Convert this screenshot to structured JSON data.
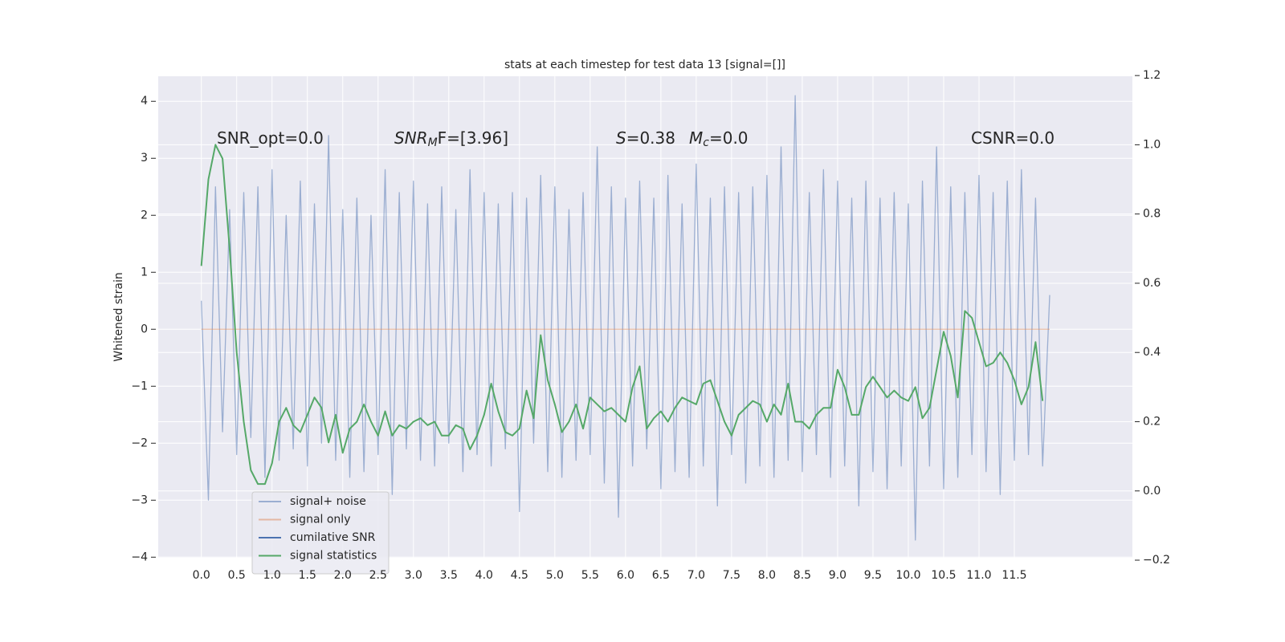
{
  "chart_data": {
    "type": "line",
    "title": "stats at each timestep for test data 13 [signal=[]]",
    "y_label": "Whitened strain",
    "annotations": [
      {
        "text": "SNR_opt=0.0"
      },
      {
        "base": "SNR",
        "sub": "M",
        "rest": "F=[3.96]"
      },
      {
        "base": "S",
        "rest": "=0.38"
      },
      {
        "base": "M",
        "sub": "c",
        "rest": "=0.0"
      },
      {
        "text": "CSNR=0.0"
      }
    ],
    "xlim": [
      -0.61,
      13.17
    ],
    "ylim": [
      -4.01,
      4.44
    ],
    "y2lim": [
      -0.193,
      1.198
    ],
    "xticks": [
      {
        "value": 0,
        "label": "0.0"
      },
      0.5,
      {
        "value": 1,
        "label": "1.0"
      },
      1.5,
      {
        "value": 2,
        "label": "2.0"
      },
      2.5,
      {
        "value": 3,
        "label": "3.0"
      },
      3.5,
      {
        "value": 4,
        "label": "4.0"
      },
      4.5,
      {
        "value": 5,
        "label": "5.0"
      },
      5.5,
      {
        "value": 6,
        "label": "6.0"
      },
      6.5,
      {
        "value": 7,
        "label": "7.0"
      },
      7.5,
      {
        "value": 8,
        "label": "8.0"
      },
      8.5,
      {
        "value": 9,
        "label": "9.0"
      },
      9.5,
      {
        "value": 10,
        "label": "10.0"
      },
      10.5,
      {
        "value": 11,
        "label": "11.0"
      },
      11.5
    ],
    "yticks": [
      {
        "value": -4,
        "label": "−4"
      },
      {
        "value": -3,
        "label": "−3"
      },
      {
        "value": -2,
        "label": "−2"
      },
      {
        "value": -1,
        "label": "−1"
      },
      0,
      1,
      2,
      3,
      4
    ],
    "y2ticks": [
      {
        "value": -0.2,
        "label": "−0.2"
      },
      {
        "value": 0,
        "label": "0.0"
      },
      0.2,
      0.4,
      0.6,
      0.8,
      {
        "value": 1,
        "label": "1.0"
      },
      1.2
    ],
    "grid": true,
    "legend": "lower left",
    "series": [
      {
        "name": "signal+ noise",
        "color": "#4c72b0",
        "alpha": 0.5,
        "x": [
          0.0,
          0.1,
          0.2,
          0.3,
          0.4,
          0.5,
          0.6,
          0.7,
          0.8,
          0.9,
          1.0,
          1.1,
          1.2,
          1.3,
          1.4,
          1.5,
          1.6,
          1.7,
          1.8,
          1.9,
          2.0,
          2.1,
          2.2,
          2.3,
          2.4,
          2.5,
          2.6,
          2.7,
          2.8,
          2.9,
          3.0,
          3.1,
          3.2,
          3.3,
          3.4,
          3.5,
          3.6,
          3.7,
          3.8,
          3.9,
          4.0,
          4.1,
          4.2,
          4.3,
          4.4,
          4.5,
          4.6,
          4.7,
          4.8,
          4.9,
          5.0,
          5.1,
          5.2,
          5.3,
          5.4,
          5.5,
          5.6,
          5.7,
          5.8,
          5.9,
          6.0,
          6.1,
          6.2,
          6.3,
          6.4,
          6.5,
          6.6,
          6.7,
          6.8,
          6.9,
          7.0,
          7.1,
          7.2,
          7.3,
          7.4,
          7.5,
          7.6,
          7.7,
          7.8,
          7.9,
          8.0,
          8.1,
          8.2,
          8.3,
          8.4,
          8.5,
          8.6,
          8.7,
          8.8,
          8.9,
          9.0,
          9.1,
          9.2,
          9.3,
          9.4,
          9.5,
          9.6,
          9.7,
          9.8,
          9.9,
          10.0,
          10.1,
          10.2,
          10.3,
          10.4,
          10.5,
          10.6,
          10.7,
          10.8,
          10.9,
          11.0,
          11.1,
          11.2,
          11.3,
          11.4,
          11.5,
          11.6,
          11.7,
          11.8,
          11.9,
          12.0
        ],
        "values": [
          0.5,
          -3.0,
          2.5,
          -1.8,
          2.1,
          -2.2,
          2.4,
          -1.9,
          2.5,
          -2.6,
          2.8,
          -2.3,
          2.0,
          -2.1,
          2.6,
          -2.4,
          2.2,
          -2.0,
          3.4,
          -2.3,
          2.1,
          -2.6,
          2.3,
          -2.5,
          2.0,
          -2.2,
          2.8,
          -2.9,
          2.4,
          -2.1,
          2.6,
          -2.3,
          2.2,
          -2.4,
          2.5,
          -2.0,
          2.1,
          -2.5,
          2.8,
          -2.2,
          2.4,
          -2.4,
          2.2,
          -2.1,
          2.4,
          -3.2,
          2.3,
          -2.0,
          2.7,
          -2.5,
          2.5,
          -2.6,
          2.1,
          -2.3,
          2.4,
          -2.2,
          3.2,
          -2.7,
          2.5,
          -3.3,
          2.3,
          -2.4,
          2.6,
          -2.1,
          2.3,
          -2.8,
          2.7,
          -2.5,
          2.2,
          -2.6,
          2.9,
          -2.4,
          2.3,
          -3.1,
          2.5,
          -2.2,
          2.4,
          -2.7,
          2.5,
          -2.4,
          2.7,
          -2.6,
          3.2,
          -2.3,
          4.1,
          -2.5,
          2.4,
          -2.2,
          2.8,
          -2.6,
          2.6,
          -2.4,
          2.3,
          -3.1,
          2.6,
          -2.5,
          2.3,
          -2.8,
          2.4,
          -2.4,
          2.2,
          -3.7,
          2.6,
          -2.4,
          3.2,
          -2.8,
          2.5,
          -2.6,
          2.4,
          -2.2,
          2.7,
          -2.5,
          2.4,
          -2.9,
          2.6,
          -2.3,
          2.8,
          -2.2,
          2.3,
          -2.4,
          0.6
        ]
      },
      {
        "name": "signal only",
        "color": "#dd8452",
        "alpha": 0.5,
        "x": [
          0.0,
          12.0
        ],
        "values": [
          0,
          0
        ]
      },
      {
        "name": "cumilative SNR",
        "color": "#4c72b0",
        "alpha": 1,
        "x": [],
        "values": []
      },
      {
        "name": "signal statistics",
        "color": "#55a868",
        "alpha": 1,
        "axis": "y2",
        "x": [
          0.0,
          0.1,
          0.2,
          0.3,
          0.4,
          0.5,
          0.6,
          0.7,
          0.8,
          0.9,
          1.0,
          1.1,
          1.2,
          1.3,
          1.4,
          1.5,
          1.6,
          1.7,
          1.8,
          1.9,
          2.0,
          2.1,
          2.2,
          2.3,
          2.4,
          2.5,
          2.6,
          2.7,
          2.8,
          2.9,
          3.0,
          3.1,
          3.2,
          3.3,
          3.4,
          3.5,
          3.6,
          3.7,
          3.8,
          3.9,
          4.0,
          4.1,
          4.2,
          4.3,
          4.4,
          4.5,
          4.6,
          4.7,
          4.8,
          4.9,
          5.0,
          5.1,
          5.2,
          5.3,
          5.4,
          5.5,
          5.6,
          5.7,
          5.8,
          5.9,
          6.0,
          6.1,
          6.2,
          6.3,
          6.4,
          6.5,
          6.6,
          6.7,
          6.8,
          6.9,
          7.0,
          7.1,
          7.2,
          7.3,
          7.4,
          7.5,
          7.6,
          7.7,
          7.8,
          7.9,
          8.0,
          8.1,
          8.2,
          8.3,
          8.4,
          8.5,
          8.6,
          8.7,
          8.8,
          8.9,
          9.0,
          9.1,
          9.2,
          9.3,
          9.4,
          9.5,
          9.6,
          9.7,
          9.8,
          9.9,
          10.0,
          10.1,
          10.2,
          10.3,
          10.4,
          10.5,
          10.6,
          10.7,
          10.8,
          10.9,
          11.0,
          11.1,
          11.2,
          11.3,
          11.4,
          11.5,
          11.6,
          11.7,
          11.8,
          11.9
        ],
        "values": [
          0.65,
          0.9,
          1.0,
          0.96,
          0.7,
          0.4,
          0.2,
          0.06,
          0.02,
          0.02,
          0.08,
          0.2,
          0.24,
          0.19,
          0.17,
          0.22,
          0.27,
          0.24,
          0.14,
          0.22,
          0.11,
          0.18,
          0.2,
          0.25,
          0.2,
          0.16,
          0.23,
          0.16,
          0.19,
          0.18,
          0.2,
          0.21,
          0.19,
          0.2,
          0.16,
          0.16,
          0.19,
          0.18,
          0.12,
          0.16,
          0.22,
          0.31,
          0.23,
          0.17,
          0.16,
          0.18,
          0.29,
          0.21,
          0.45,
          0.32,
          0.25,
          0.17,
          0.2,
          0.25,
          0.18,
          0.27,
          0.25,
          0.23,
          0.24,
          0.22,
          0.2,
          0.3,
          0.36,
          0.18,
          0.21,
          0.23,
          0.2,
          0.24,
          0.27,
          0.26,
          0.25,
          0.31,
          0.32,
          0.26,
          0.2,
          0.16,
          0.22,
          0.24,
          0.26,
          0.25,
          0.2,
          0.25,
          0.22,
          0.31,
          0.2,
          0.2,
          0.18,
          0.22,
          0.24,
          0.24,
          0.35,
          0.3,
          0.22,
          0.22,
          0.3,
          0.33,
          0.3,
          0.27,
          0.29,
          0.27,
          0.26,
          0.3,
          0.21,
          0.24,
          0.35,
          0.46,
          0.39,
          0.27,
          0.52,
          0.5,
          0.43,
          0.36,
          0.37,
          0.4,
          0.37,
          0.32,
          0.25,
          0.3,
          0.43,
          0.26
        ]
      }
    ]
  }
}
